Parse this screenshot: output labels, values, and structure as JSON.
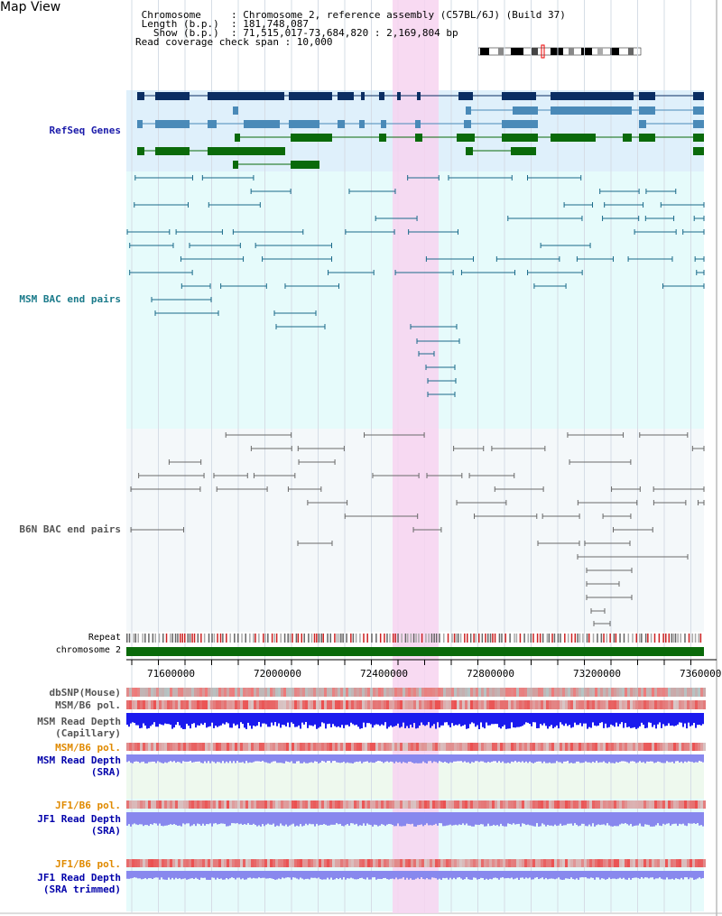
{
  "header": {
    "title": "Map View",
    "lines": [
      " Chromosome     : Chromosome 2, reference assembly (C57BL/6J) (Build 37)",
      " Length (b.p.)  : 181,748,087",
      "   Show (b.p.)  : 71,515,017-73,684,820 : 2,169,804 bp",
      "Read coverage check span : 10,000"
    ]
  },
  "tracks": {
    "refseq": "RefSeq Genes",
    "msm_bac": "MSM BAC end pairs",
    "b6n_bac": "B6N BAC end pairs",
    "repeat": "Repeat",
    "chromosome": "chromosome 2",
    "dbsnp": "dbSNP(Mouse)",
    "msm_b6_pol": "MSM/B6 pol.",
    "msm_read_depth_cap_1": "MSM Read Depth",
    "msm_read_depth_cap_2": "(Capillary)",
    "msm_b6_pol_2": "MSM/B6 pol.",
    "msm_read_depth_sra_1": "MSM Read Depth",
    "msm_read_depth_sra_2": "(SRA)",
    "jf1_b6_pol": "JF1/B6 pol.",
    "jf1_read_depth_1": "JF1 Read Depth",
    "jf1_read_depth_2": "(SRA)",
    "jf1_b6_pol_2": "JF1/B6 pol.",
    "jf1_trim_1": "JF1 Read Depth",
    "jf1_trim_2": "(SRA trimmed)"
  },
  "axis": {
    "ticks": [
      "71600000",
      "72000000",
      "72400000",
      "72800000",
      "73200000",
      "73600000"
    ]
  },
  "colors": {
    "refseq_bg": "#dff0fb",
    "bac_bg": "#e6fbfb",
    "highlight": "#f7d4f0",
    "gene_dark": "#0b2e63",
    "gene_mid": "#4a8ab8",
    "gene_green": "#0a6a0a",
    "msm_bac": "#1a6a8a",
    "b6n_bac": "#6a6a6a",
    "chromosome": "#0a6a0a",
    "depth_dark": "#1a1aee",
    "depth_light": "#8888ee",
    "label_blue": "#1a1aaa",
    "label_teal": "#1a7a8a",
    "label_orange": "#e08a00",
    "label_navy": "#0000aa"
  }
}
